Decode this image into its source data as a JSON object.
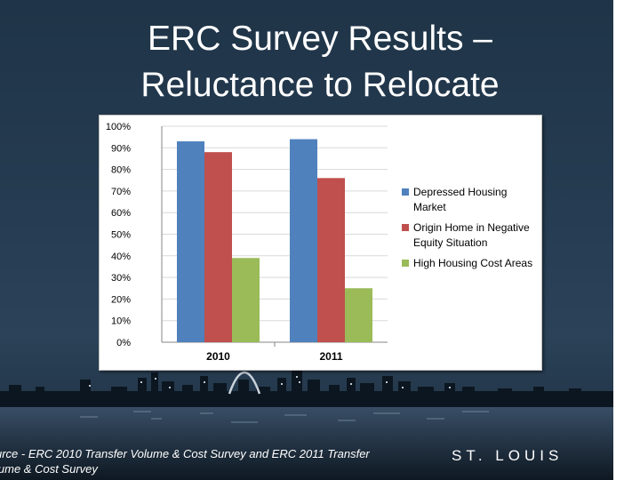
{
  "slide": {
    "title_line1": "ERC Survey Results –",
    "title_line2": "Reluctance to Relocate",
    "source_line1": "urce - ERC 2010 Transfer Volume & Cost Survey and ERC 2011 Transfer",
    "source_line2": "lume & Cost Survey",
    "brand": "ST. LOUIS"
  },
  "chart_data": {
    "type": "bar",
    "categories": [
      "2010",
      "2011"
    ],
    "series": [
      {
        "name": "Depressed Housing Market",
        "values": [
          93,
          94
        ],
        "color": "#4f81bd"
      },
      {
        "name": "Origin Home in Negative Equity Situation",
        "values": [
          88,
          76
        ],
        "color": "#c0504d"
      },
      {
        "name": "High Housing Cost Areas",
        "values": [
          39,
          25
        ],
        "color": "#9bbb59"
      }
    ],
    "legend_lines": [
      [
        "Depressed Housing",
        "Market"
      ],
      [
        "Origin Home in Negative",
        "Equity Situation"
      ],
      [
        "High Housing Cost Areas"
      ]
    ],
    "yticks": [
      "0%",
      "10%",
      "20%",
      "30%",
      "40%",
      "50%",
      "60%",
      "70%",
      "80%",
      "90%",
      "100%"
    ],
    "ylim": [
      0,
      100
    ],
    "grid": true,
    "legend_position": "right"
  }
}
